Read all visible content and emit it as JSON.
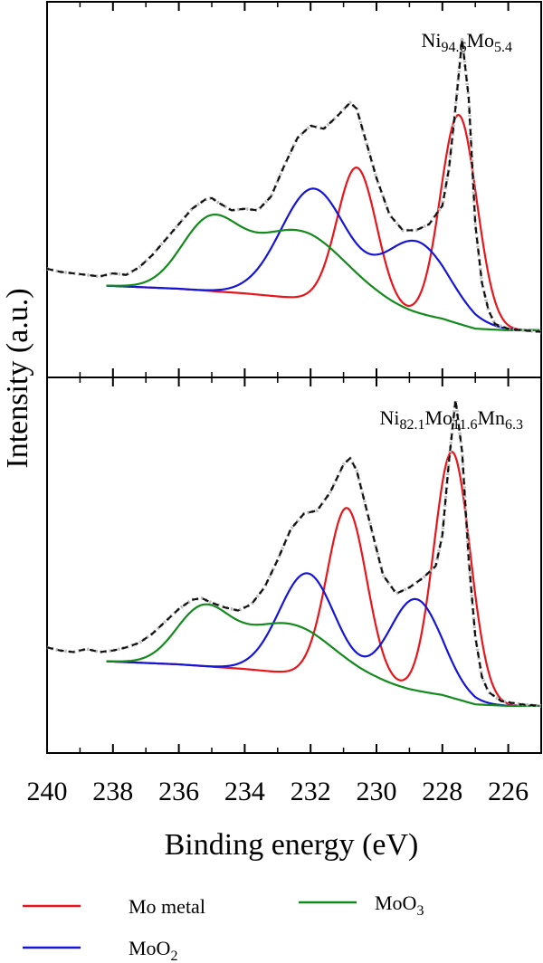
{
  "chart_data": {
    "type": "line",
    "xlabel": "Binding energy (eV)",
    "ylabel": "Intensity (a.u.)",
    "xlim": [
      240,
      225
    ],
    "x_reversed": true,
    "xticks": [
      240,
      238,
      236,
      234,
      232,
      230,
      228,
      226
    ],
    "y_ticks_shown": false,
    "grid": false,
    "legend": {
      "placement": "bottom",
      "entries": [
        {
          "label": "Mo metal",
          "color": "#e8151b"
        },
        {
          "label": "MoO",
          "sub": "2",
          "color": "#1515d8"
        },
        {
          "label": "MoO",
          "sub": "3",
          "color": "#138a1c"
        }
      ]
    },
    "panels": [
      {
        "label_parts": [
          [
            "Ni",
            ""
          ],
          [
            "94.6",
            "sub"
          ],
          [
            "Mo",
            ""
          ],
          [
            "5.4",
            "sub"
          ]
        ],
        "ylim": [
          0,
          1.05
        ],
        "background": {
          "x": [
            238.2,
            236,
            234,
            232,
            230,
            229,
            228,
            227.5,
            227,
            226,
            225
          ],
          "y": [
            0.17,
            0.16,
            0.145,
            0.125,
            0.095,
            0.075,
            0.06,
            0.045,
            0.03,
            0.025,
            0.025
          ]
        },
        "components": [
          {
            "name": "Mo metal",
            "color": "#e8151b",
            "peaks": [
              [
                227.5,
                0.68,
                0.55
              ],
              [
                230.6,
                0.45,
                0.6
              ]
            ]
          },
          {
            "name": "MoO2",
            "color": "#1515d8",
            "peaks": [
              [
                231.9,
                0.36,
                1.0
              ],
              [
                228.8,
                0.24,
                1.0
              ]
            ]
          },
          {
            "name": "MoO3",
            "color": "#138a1c",
            "peaks": [
              [
                235.1,
                0.2,
                0.85
              ],
              [
                232.4,
                0.22,
                1.5
              ]
            ]
          }
        ],
        "raw": {
          "x": [
            240,
            239.6,
            239.2,
            238.8,
            238.4,
            238,
            237.6,
            237.2,
            236.8,
            236.4,
            236,
            235.6,
            235.2,
            235,
            234.8,
            234.4,
            234,
            233.6,
            233.2,
            232.8,
            232.4,
            232,
            231.6,
            231.2,
            230.8,
            230.6,
            230.4,
            230,
            229.6,
            229.2,
            228.8,
            228.4,
            228,
            227.8,
            227.6,
            227.4,
            227.2,
            227,
            226.8,
            226.6,
            226.4,
            226,
            225.6,
            225
          ],
          "y": [
            0.225,
            0.215,
            0.21,
            0.205,
            0.2,
            0.21,
            0.205,
            0.23,
            0.27,
            0.32,
            0.37,
            0.42,
            0.45,
            0.455,
            0.44,
            0.415,
            0.42,
            0.415,
            0.46,
            0.56,
            0.65,
            0.69,
            0.68,
            0.72,
            0.765,
            0.745,
            0.67,
            0.52,
            0.4,
            0.35,
            0.35,
            0.37,
            0.43,
            0.55,
            0.75,
            0.97,
            0.78,
            0.37,
            0.18,
            0.09,
            0.045,
            0.03,
            0.025,
            0.02
          ]
        }
      },
      {
        "label_parts": [
          [
            "Ni",
            ""
          ],
          [
            "82.1",
            "sub"
          ],
          [
            "Mo",
            ""
          ],
          [
            "11.6",
            "sub"
          ],
          [
            "Mn",
            ""
          ],
          [
            "6.3",
            "sub"
          ]
        ],
        "ylim": [
          0,
          1.05
        ],
        "background": {
          "x": [
            238.2,
            236,
            234,
            232,
            230,
            229,
            228,
            227.5,
            227,
            226,
            225
          ],
          "y": [
            0.17,
            0.16,
            0.145,
            0.125,
            0.095,
            0.075,
            0.06,
            0.045,
            0.03,
            0.025,
            0.025
          ]
        },
        "components": [
          {
            "name": "Mo metal",
            "color": "#e8151b",
            "peaks": [
              [
                227.7,
                0.8,
                0.55
              ],
              [
                230.9,
                0.56,
                0.6
              ]
            ]
          },
          {
            "name": "MoO2",
            "color": "#1515d8",
            "peaks": [
              [
                232.1,
                0.33,
                0.85
              ],
              [
                228.8,
                0.3,
                0.8
              ]
            ]
          },
          {
            "name": "MoO3",
            "color": "#138a1c",
            "peaks": [
              [
                235.3,
                0.17,
                0.8
              ],
              [
                232.7,
                0.16,
                1.4
              ]
            ]
          }
        ],
        "raw": {
          "x": [
            240,
            239.6,
            239.2,
            238.8,
            238.4,
            238,
            237.6,
            237.2,
            236.8,
            236.4,
            236,
            235.6,
            235.3,
            235,
            234.6,
            234.2,
            233.8,
            233.4,
            233,
            232.6,
            232.2,
            231.8,
            231.4,
            231,
            230.8,
            230.6,
            230.2,
            229.8,
            229.4,
            229,
            228.6,
            228.2,
            228,
            227.8,
            227.6,
            227.4,
            227.2,
            227,
            226.8,
            226.6,
            226.2,
            225.6,
            225
          ],
          "y": [
            0.215,
            0.205,
            0.2,
            0.21,
            0.2,
            0.205,
            0.215,
            0.23,
            0.26,
            0.3,
            0.34,
            0.37,
            0.375,
            0.36,
            0.345,
            0.335,
            0.355,
            0.41,
            0.5,
            0.6,
            0.65,
            0.66,
            0.72,
            0.81,
            0.83,
            0.79,
            0.62,
            0.45,
            0.39,
            0.41,
            0.44,
            0.48,
            0.58,
            0.82,
            1.02,
            0.85,
            0.5,
            0.25,
            0.12,
            0.07,
            0.04,
            0.03,
            0.025
          ]
        }
      }
    ]
  }
}
